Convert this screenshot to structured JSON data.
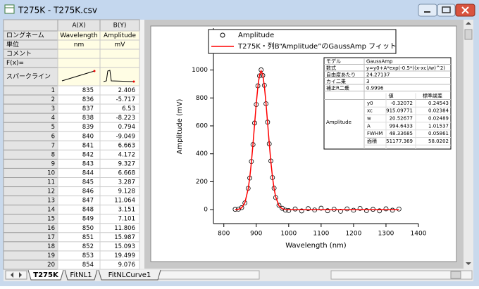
{
  "window": {
    "title": "T275K - T275K.csv"
  },
  "worksheet": {
    "columns": [
      "A(X)",
      "B(Y)"
    ],
    "row_labels": [
      "ロングネーム",
      "単位",
      "コメント",
      "F(x)=",
      "スパークライン"
    ],
    "long_names": [
      "Wavelength",
      "Amplitude"
    ],
    "units": [
      "nm",
      "mV"
    ],
    "rows": [
      [
        1,
        835,
        2.406
      ],
      [
        2,
        836,
        -5.717
      ],
      [
        3,
        837,
        6.53
      ],
      [
        4,
        838,
        -8.223
      ],
      [
        5,
        839,
        0.794
      ],
      [
        6,
        840,
        -9.049
      ],
      [
        7,
        841,
        6.663
      ],
      [
        8,
        842,
        4.172
      ],
      [
        9,
        843,
        9.327
      ],
      [
        10,
        844,
        6.668
      ],
      [
        11,
        845,
        3.287
      ],
      [
        12,
        846,
        9.128
      ],
      [
        13,
        847,
        11.064
      ],
      [
        14,
        848,
        3.151
      ],
      [
        15,
        849,
        7.101
      ],
      [
        16,
        850,
        11.806
      ],
      [
        17,
        851,
        15.987
      ],
      [
        18,
        852,
        15.093
      ],
      [
        19,
        853,
        19.499
      ],
      [
        20,
        854,
        9.076
      ]
    ]
  },
  "tabs": [
    "T275K",
    "FitNL1",
    "FitNLCurve1"
  ],
  "chart_data": {
    "type": "scatter",
    "x_label": "Wavelength (nm)",
    "y_label": "Amplitude (mV)",
    "x": [
      835,
      845,
      855,
      865,
      875,
      880,
      885,
      890,
      895,
      900,
      905,
      910,
      915,
      920,
      925,
      930,
      935,
      940,
      945,
      950,
      955,
      960,
      970,
      980,
      990,
      1000,
      1020,
      1040,
      1060,
      1080,
      1100,
      1120,
      1140,
      1160,
      1180,
      1200,
      1220,
      1240,
      1260,
      1280,
      1300,
      1320,
      1340
    ],
    "series": [
      {
        "name": "Amplitude",
        "style": "symbol",
        "color": "#000000",
        "values": [
          2.406,
          3.287,
          14.2,
          48.5,
          152.3,
          226.8,
          345.1,
          466.2,
          620.4,
          752.9,
          886.7,
          958.3,
          1001.2,
          961.5,
          890.2,
          758.7,
          626.9,
          471.4,
          348.6,
          229.8,
          153.7,
          86.4,
          31.2,
          9.8,
          -3.5,
          -6.2,
          4.8,
          -9.1,
          7.3,
          -2.4,
          10.5,
          -7.8,
          3.1,
          -11.2,
          5.6,
          -4.3,
          8.9,
          -6.7,
          2.2,
          -8.5,
          6.1,
          -3.9,
          4.4
        ]
      },
      {
        "name": "T275K・列B“Amplitude”のGaussAmp フィット",
        "style": "line",
        "color": "#ff0000",
        "values": [
          0.17,
          2.6,
          13.4,
          50.3,
          147.4,
          230.4,
          339.2,
          470.9,
          615.6,
          758.6,
          880.9,
          964.1,
          994.3,
          966.4,
          885.1,
          764.0,
          621.4,
          476.3,
          344.1,
          234.1,
          150.2,
          90.7,
          27.5,
          6.4,
          1.0,
          -0.13,
          -0.32,
          -0.32,
          -0.32,
          -0.32,
          -0.32,
          -0.32,
          -0.32,
          -0.32,
          -0.32,
          -0.32,
          -0.32,
          -0.32,
          -0.32,
          -0.32,
          -0.32,
          -0.32,
          -0.32
        ]
      }
    ],
    "xlim": [
      768,
      1400
    ],
    "xticks": [
      800,
      900,
      1000,
      1100,
      1200,
      1300,
      1400
    ],
    "ylim": [
      -100,
      1300
    ],
    "yticks": [
      0,
      200,
      400,
      600,
      800,
      1000
    ]
  },
  "fit_table": {
    "rows": [
      [
        "モデル",
        "GaussAmp"
      ],
      [
        "数式",
        "y=y0+A*exp(-0.5*((x-xc)/w)^2)"
      ],
      [
        "自由度あたり",
        "24.27137"
      ],
      [
        "カイ二乗",
        "3"
      ],
      [
        "補正R二乗",
        "0.9996"
      ]
    ],
    "param_header": [
      "値",
      "標準誤差"
    ],
    "group": "Amplitude",
    "params": [
      [
        "y0",
        "-0.32072",
        "0.24543"
      ],
      [
        "xc",
        "915.09771",
        "0.02384"
      ],
      [
        "w",
        "20.52677",
        "0.02489"
      ],
      [
        "A",
        "994.6433",
        "1.01537"
      ],
      [
        "FWHM",
        "48.33685",
        "0.05861"
      ],
      [
        "面積",
        "51177.369",
        "58.0202"
      ]
    ]
  }
}
